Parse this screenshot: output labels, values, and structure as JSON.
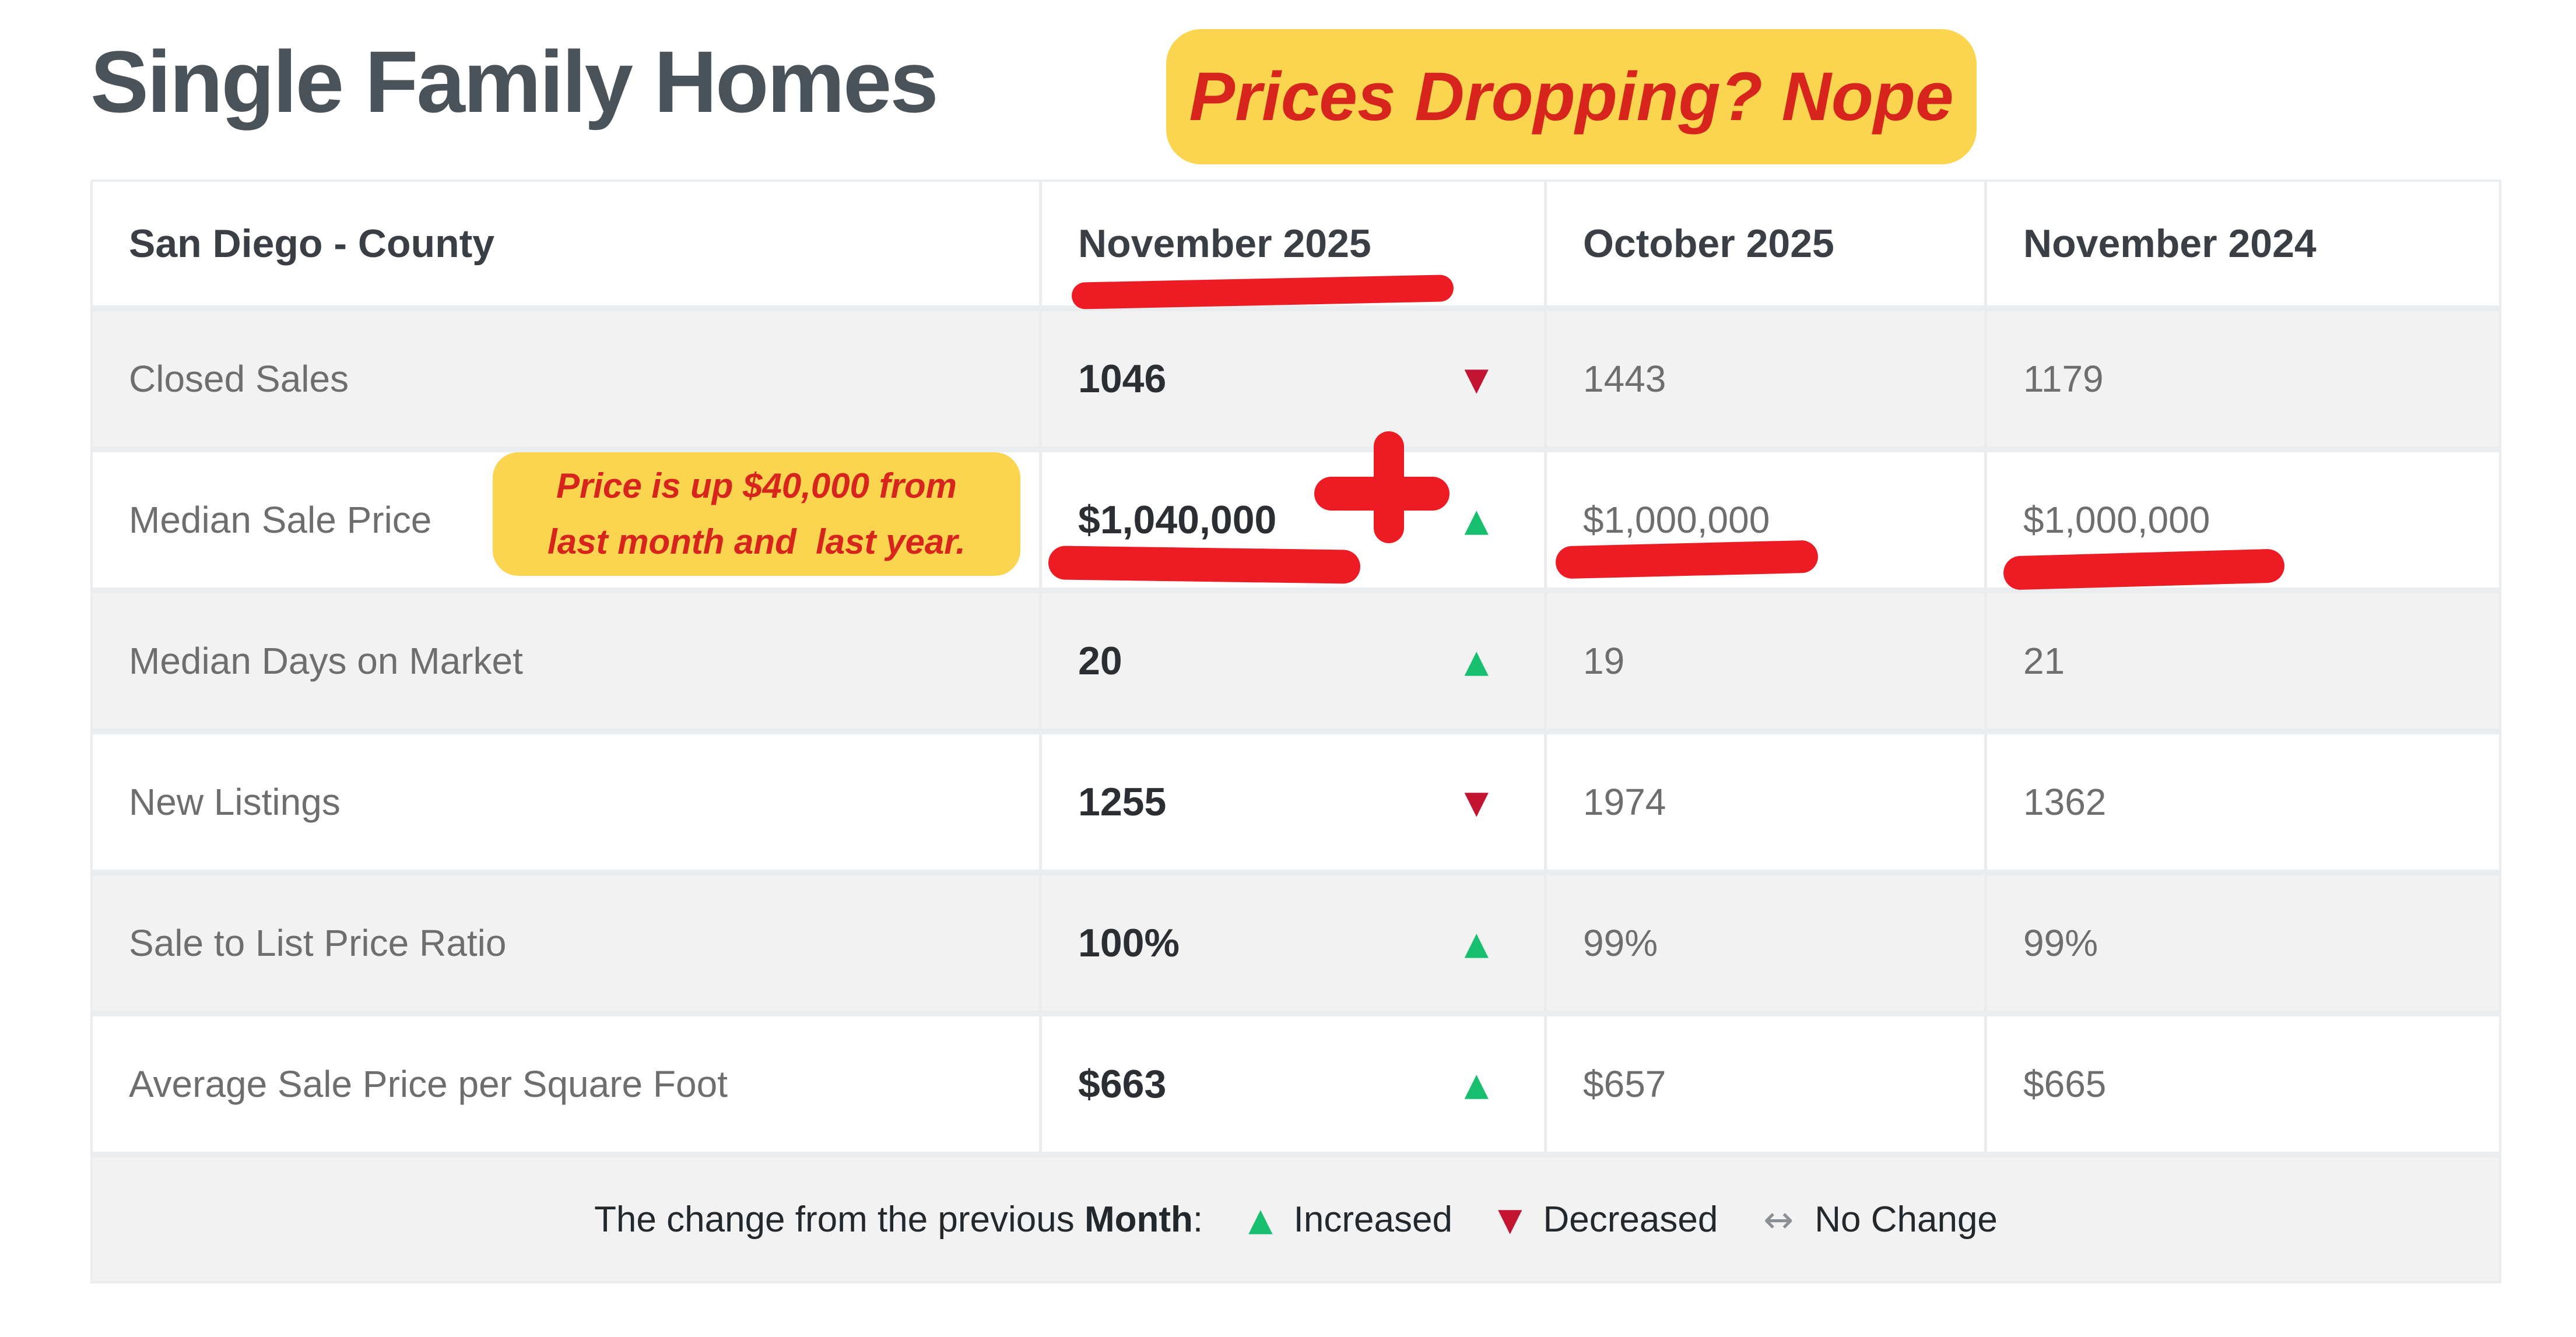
{
  "title": "Single Family Homes",
  "callout": {
    "text": "Prices Dropping? Nope"
  },
  "note": {
    "line1": "Price is up $40,000 from",
    "line2": "last month and  last year."
  },
  "table": {
    "columns": [
      "San Diego - County",
      "November 2025",
      "October 2025",
      "November 2024"
    ],
    "rows": [
      {
        "label": "Closed Sales",
        "current": "1046",
        "trend": "down",
        "prev_month": "1443",
        "prev_year": "1179"
      },
      {
        "label": "Median Sale Price",
        "current": "$1,040,000",
        "trend": "up",
        "prev_month": "$1,000,000",
        "prev_year": "$1,000,000"
      },
      {
        "label": "Median Days on Market",
        "current": "20",
        "trend": "up",
        "prev_month": "19",
        "prev_year": "21"
      },
      {
        "label": "New Listings",
        "current": "1255",
        "trend": "down",
        "prev_month": "1974",
        "prev_year": "1362"
      },
      {
        "label": "Sale to List Price Ratio",
        "current": "100%",
        "trend": "up",
        "prev_month": "99%",
        "prev_year": "99%"
      },
      {
        "label": "Average Sale Price per Square Foot",
        "current": "$663",
        "trend": "up",
        "prev_month": "$657",
        "prev_year": "$665"
      }
    ]
  },
  "legend": {
    "prefix": "The change from the previous ",
    "bold": "Month",
    "colon": ":",
    "increased": "Increased",
    "decreased": "Decreased",
    "no_change": "No Change"
  },
  "glyphs": {
    "up": "▲",
    "down": "▼",
    "no_change": "↔"
  },
  "colors": {
    "up_green": "#17BF6E",
    "down_crimson": "#C31432",
    "marker_red": "#ED1C24",
    "note_red": "#D7241D",
    "highlight_yellow": "#FBD54F",
    "title_gray": "#4A525A"
  },
  "chart_data": {
    "type": "table",
    "title": "Single Family Homes",
    "region": "San Diego - County",
    "columns": [
      "November 2025",
      "October 2025",
      "November 2024"
    ],
    "rows": [
      {
        "metric": "Closed Sales",
        "values": [
          1046,
          1443,
          1179
        ],
        "month_over_month": "decreased"
      },
      {
        "metric": "Median Sale Price",
        "values": [
          1040000,
          1000000,
          1000000
        ],
        "month_over_month": "increased"
      },
      {
        "metric": "Median Days on Market",
        "values": [
          20,
          19,
          21
        ],
        "month_over_month": "increased"
      },
      {
        "metric": "New Listings",
        "values": [
          1255,
          1974,
          1362
        ],
        "month_over_month": "decreased"
      },
      {
        "metric": "Sale to List Price Ratio",
        "values": [
          "100%",
          "99%",
          "99%"
        ],
        "month_over_month": "increased"
      },
      {
        "metric": "Average Sale Price per Square Foot",
        "values": [
          663,
          657,
          665
        ],
        "month_over_month": "increased"
      }
    ],
    "annotations": [
      "Prices Dropping? Nope",
      "Price is up $40,000 from last month and last year.",
      "November 2025 underlined in red",
      "$1,040,000 underlined with red plus sign",
      "both $1,000,000 values underlined in red"
    ],
    "legend": "The change from the previous Month: ▲ Increased ▼ Decreased ↔ No Change"
  }
}
